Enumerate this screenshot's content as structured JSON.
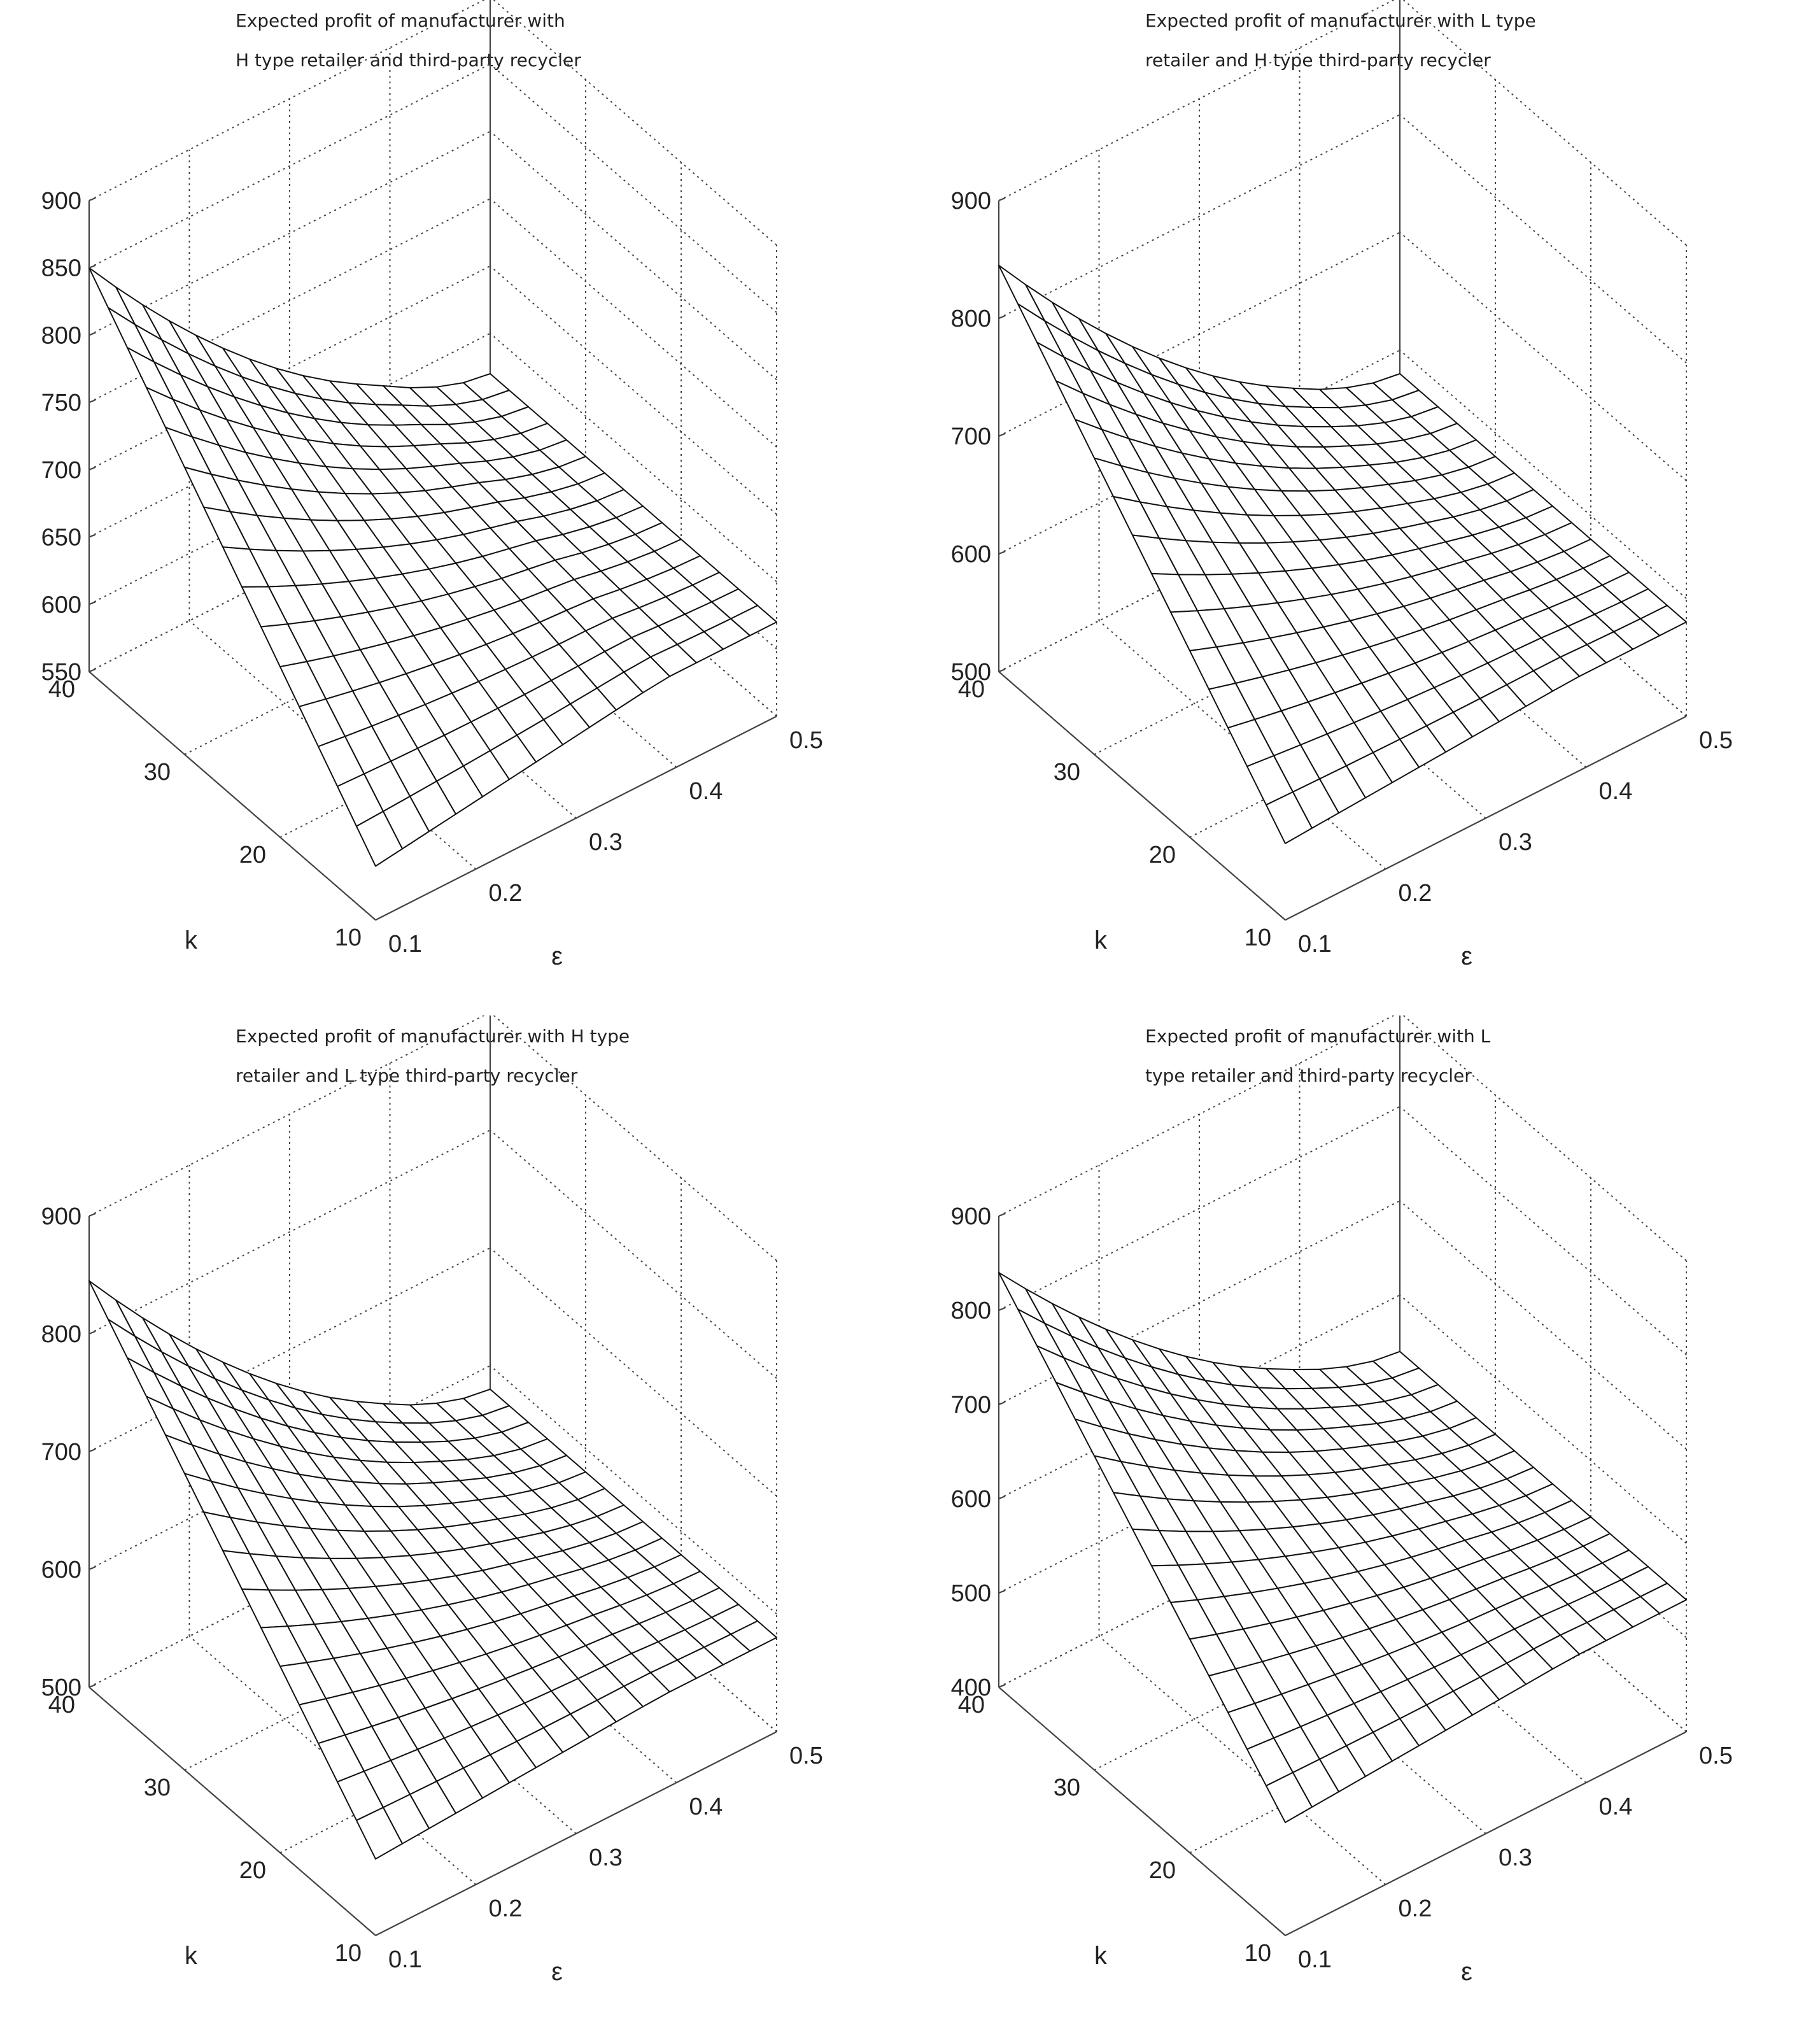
{
  "chart_data": [
    {
      "type": "surface",
      "title_lines": [
        "Expected profit of manufacturer with",
        "H type retailer and third-party recycler"
      ],
      "xlabel": "ε",
      "ylabel": "k",
      "x_ticks": [
        "0.1",
        "0.2",
        "0.3",
        "0.4",
        "0.5"
      ],
      "y_ticks": [
        "10",
        "20",
        "30",
        "40"
      ],
      "z_ticks": [
        "550",
        "600",
        "650",
        "700",
        "750",
        "800",
        "850",
        "900"
      ],
      "xlim": [
        0.1,
        0.5
      ],
      "ylim": [
        10,
        40
      ],
      "zlim": [
        550,
        900
      ],
      "surface_profit": {
        "max": 850,
        "corner_low_eps_low_k": 590,
        "plateau": 620
      }
    },
    {
      "type": "surface",
      "title_lines": [
        "Expected profit of manufacturer with L type",
        "retailer and H type third-party recycler"
      ],
      "xlabel": "ε",
      "ylabel": "k",
      "x_ticks": [
        "0.1",
        "0.2",
        "0.3",
        "0.4",
        "0.5"
      ],
      "y_ticks": [
        "10",
        "20",
        "30",
        "40"
      ],
      "z_ticks": [
        "500",
        "600",
        "700",
        "800",
        "900"
      ],
      "xlim": [
        0.1,
        0.5
      ],
      "ylim": [
        10,
        40
      ],
      "zlim": [
        500,
        900
      ],
      "surface_profit": {
        "max": 845,
        "corner_low_eps_low_k": 565,
        "plateau": 580
      }
    },
    {
      "type": "surface",
      "title_lines": [
        "Expected profit of manufacturer with H type",
        "retailer and L type third-party recycler"
      ],
      "xlabel": "ε",
      "ylabel": "k",
      "x_ticks": [
        "0.1",
        "0.2",
        "0.3",
        "0.4",
        "0.5"
      ],
      "y_ticks": [
        "10",
        "20",
        "30",
        "40"
      ],
      "z_ticks": [
        "500",
        "600",
        "700",
        "800",
        "900"
      ],
      "xlim": [
        0.1,
        0.5
      ],
      "ylim": [
        10,
        40
      ],
      "zlim": [
        500,
        900
      ],
      "surface_profit": {
        "max": 845,
        "corner_low_eps_low_k": 565,
        "plateau": 580
      }
    },
    {
      "type": "surface",
      "title_lines": [
        "Expected profit of manufacturer with L",
        "type retailer and third-party recycler"
      ],
      "xlabel": "ε",
      "ylabel": "k",
      "x_ticks": [
        "0.1",
        "0.2",
        "0.3",
        "0.4",
        "0.5"
      ],
      "y_ticks": [
        "10",
        "20",
        "30",
        "40"
      ],
      "z_ticks": [
        "400",
        "500",
        "600",
        "700",
        "800",
        "900"
      ],
      "xlim": [
        0.1,
        0.5
      ],
      "ylim": [
        10,
        40
      ],
      "zlim": [
        400,
        900
      ],
      "surface_profit": {
        "max": 840,
        "corner_low_eps_low_k": 520,
        "plateau": 540
      }
    }
  ]
}
